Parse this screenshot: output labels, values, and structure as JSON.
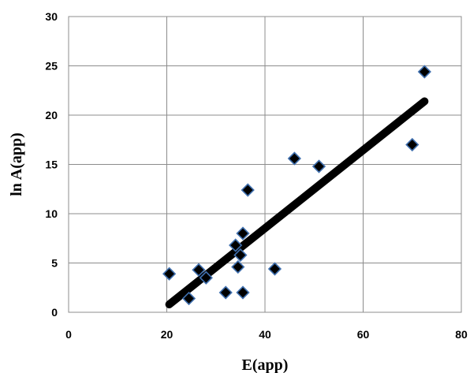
{
  "chart_data": {
    "type": "scatter",
    "xlabel": "E(app)",
    "ylabel": "ln A(app)",
    "xlim": [
      0,
      80
    ],
    "ylim": [
      0,
      30
    ],
    "x_ticks": [
      "0",
      "20",
      "40",
      "60",
      "80"
    ],
    "y_ticks": [
      "0",
      "5",
      "10",
      "15",
      "20",
      "25",
      "30"
    ],
    "grid": true,
    "legend": "none",
    "marker_color": "#000000",
    "marker_edge_color": "#3f6fae",
    "trendline_color": "#000000",
    "points": [
      {
        "x": 20.5,
        "y": 3.9
      },
      {
        "x": 24.5,
        "y": 1.4
      },
      {
        "x": 26.5,
        "y": 4.3
      },
      {
        "x": 28.0,
        "y": 3.5
      },
      {
        "x": 32.0,
        "y": 2.0
      },
      {
        "x": 34.0,
        "y": 6.8
      },
      {
        "x": 34.5,
        "y": 4.6
      },
      {
        "x": 35.0,
        "y": 5.8
      },
      {
        "x": 35.5,
        "y": 8.0
      },
      {
        "x": 35.5,
        "y": 2.0
      },
      {
        "x": 36.5,
        "y": 12.4
      },
      {
        "x": 42.0,
        "y": 4.4
      },
      {
        "x": 46.0,
        "y": 15.6
      },
      {
        "x": 51.0,
        "y": 14.8
      },
      {
        "x": 70.0,
        "y": 17.0
      },
      {
        "x": 72.5,
        "y": 24.4
      }
    ],
    "trendline": {
      "x": [
        20.5,
        72.5
      ],
      "y": [
        0.8,
        21.4
      ]
    }
  }
}
